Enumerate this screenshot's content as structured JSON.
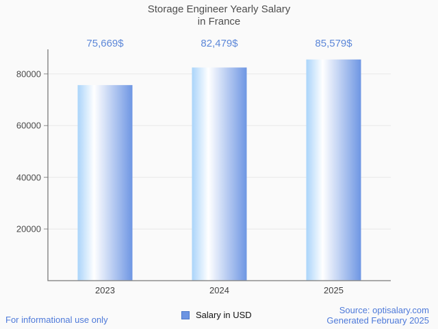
{
  "header": {
    "title_line1": "Storage Engineer Yearly Salary",
    "title_line2": "in France"
  },
  "chart_data": {
    "type": "bar",
    "title": "Storage Engineer Yearly Salary in France",
    "categories": [
      "2023",
      "2024",
      "2025"
    ],
    "series": [
      {
        "name": "Salary in USD",
        "values": [
          75669,
          82479,
          85579
        ]
      }
    ],
    "value_labels": [
      "75,669$",
      "82,479$",
      "85,579$"
    ],
    "xlabel": "",
    "ylabel": "",
    "ylim": [
      0,
      89500
    ],
    "yticks": [
      20000,
      40000,
      60000,
      80000
    ],
    "ytick_labels": [
      "20000",
      "40000",
      "60000",
      "80000"
    ],
    "grid": true,
    "legend_position": "bottom-center"
  },
  "legend": {
    "label": "Salary in USD"
  },
  "footer": {
    "disclaimer": "For informational use only",
    "source": "Source: optisalary.com",
    "generated": "Generated February 2025"
  },
  "colors": {
    "background": "#fafafa",
    "title_text": "#4d4d4d",
    "value_label_blue": "#5c87d8",
    "footer_blue": "#4d79d9",
    "tick_text": "#4a4a4a",
    "axis": "#8c8c8c",
    "grid": "#e8e8e8",
    "bar_gradient_left": "#aad4fa",
    "bar_gradient_mid": "#ffffff",
    "bar_gradient_right": "#6e96e3",
    "bar_gradient_white_stop": 0.3,
    "legend_fill": "#6d95e2",
    "legend_border": "#4a77c9"
  }
}
